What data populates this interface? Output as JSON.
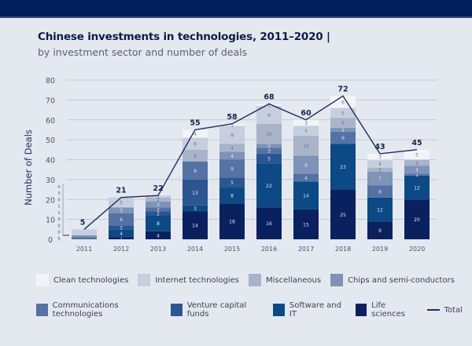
{
  "header": {
    "title": "Chinese investments in technologies, 2011–2020 |",
    "subtitle": "by investment sector and number of deals"
  },
  "chart_data": {
    "type": "bar",
    "stacked": true,
    "title": "Chinese investments in technologies, 2011–2020",
    "subtitle": "by investment sector and number of deals",
    "xlabel": "",
    "ylabel": "Number of Deals",
    "ylim": [
      0,
      80
    ],
    "yticks": [
      0,
      10,
      20,
      30,
      40,
      50,
      60,
      70,
      80
    ],
    "grid": true,
    "legend_position": "bottom",
    "categories": [
      "2011",
      "2012",
      "2013",
      "2014",
      "2015",
      "2016",
      "2017",
      "2018",
      "2019",
      "2020"
    ],
    "series": [
      {
        "name": "Life sciences",
        "color": "#0a2160",
        "values": [
          0,
          1,
          4,
          14,
          18,
          16,
          15,
          25,
          9,
          20
        ]
      },
      {
        "name": "Software and IT",
        "color": "#0b4a86",
        "values": [
          0,
          4,
          8,
          3,
          8,
          22,
          14,
          23,
          12,
          12
        ]
      },
      {
        "name": "Venture capital funds",
        "color": "#2b5691",
        "values": [
          0,
          2,
          2,
          13,
          5,
          5,
          0,
          0,
          0,
          0
        ]
      },
      {
        "name": "Communications technologies",
        "color": "#5472a3",
        "values": [
          1,
          6,
          2,
          9,
          9,
          3,
          4,
          6,
          6,
          1
        ]
      },
      {
        "name": "Chips and semi-conductors",
        "color": "#7d93b7",
        "values": [
          1,
          3,
          3,
          0,
          4,
          2,
          9,
          2,
          7,
          4
        ]
      },
      {
        "name": "Miscellaneous",
        "color": "#a8b4c9",
        "values": [
          0,
          0,
          2,
          6,
          4,
          10,
          10,
          5,
          2,
          3
        ]
      },
      {
        "name": "Internet technologies",
        "color": "#c7cede",
        "values": [
          3,
          5,
          1,
          6,
          9,
          9,
          5,
          5,
          4,
          0
        ]
      },
      {
        "name": "Clean technologies",
        "color": "#f2f4f8",
        "values": [
          0,
          0,
          0,
          4,
          1,
          1,
          3,
          6,
          3,
          5
        ]
      }
    ],
    "total": {
      "name": "Total",
      "color": "#1d2c5e",
      "values": [
        5,
        21,
        22,
        55,
        58,
        68,
        60,
        72,
        43,
        45
      ]
    },
    "annotations": {
      "2011_breakdown_labels": [
        "0",
        "3",
        "0",
        "1",
        "1",
        "0",
        "0",
        "0",
        "5"
      ]
    }
  },
  "legend": {
    "row1": [
      "Clean technologies",
      "Internet technologies",
      "Miscellaneous",
      "Chips and semi-conductors"
    ],
    "row2": [
      "Communications technologies",
      "Venture capital funds",
      "Software and IT",
      "Life sciences",
      "Total"
    ]
  }
}
